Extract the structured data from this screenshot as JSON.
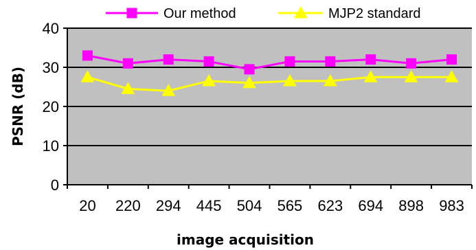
{
  "chart_data": {
    "type": "line",
    "categories": [
      "20",
      "220",
      "294",
      "445",
      "504",
      "565",
      "623",
      "694",
      "898",
      "983"
    ],
    "series": [
      {
        "name": "Our method",
        "values": [
          33,
          31,
          32,
          31.5,
          29.5,
          31.5,
          31.5,
          32,
          31,
          32
        ],
        "color": "#ff00ff",
        "marker": "square"
      },
      {
        "name": "MJP2 standard",
        "values": [
          27.5,
          24.5,
          24,
          26.5,
          26,
          26.5,
          26.5,
          27.5,
          27.5,
          27.5
        ],
        "color": "#ffff00",
        "marker": "triangle"
      }
    ],
    "xlabel": "image acquisition",
    "ylabel": "PSNR (dB)",
    "ylim": [
      0,
      40
    ],
    "yticks": [
      0,
      10,
      20,
      30,
      40
    ],
    "grid": "horizontal",
    "plot_background": "#c0c0c0",
    "legend_position": "top"
  }
}
